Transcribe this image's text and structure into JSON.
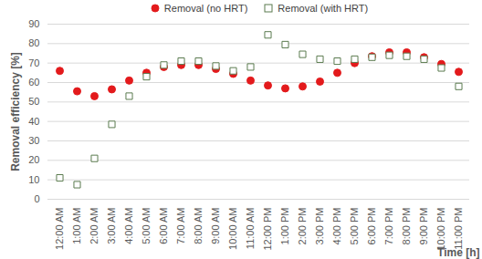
{
  "chart_data": {
    "type": "scatter",
    "categories": [
      "12:00 AM",
      "1:00 AM",
      "2:00 AM",
      "3:00 AM",
      "4:00 AM",
      "5:00 AM",
      "6:00 AM",
      "7:00 AM",
      "8:00 AM",
      "9:00 AM",
      "10:00 AM",
      "11:00 AM",
      "12:00 PM",
      "1:00 PM",
      "2:00 PM",
      "3:00 PM",
      "4:00 PM",
      "5:00 PM",
      "6:00 PM",
      "7:00 PM",
      "8:00 PM",
      "9:00 PM",
      "10:00 PM",
      "11:00 PM"
    ],
    "series": [
      {
        "name": "Removal (no HRT)",
        "color": "#e31a1c",
        "marker": "circle",
        "values": [
          66,
          55.5,
          53,
          56.5,
          61,
          65,
          68,
          69,
          69,
          67,
          64.5,
          61,
          58.5,
          57,
          58,
          60.5,
          65,
          70,
          73.5,
          75.5,
          75.5,
          73,
          69.5,
          65.5
        ]
      },
      {
        "name": "Removal (with HRT)",
        "color": "#5b7b4f",
        "marker": "square",
        "values": [
          11,
          7.5,
          21,
          38.5,
          53,
          63,
          69,
          71,
          71,
          68.5,
          66,
          68,
          84.5,
          79.5,
          74.5,
          72,
          71,
          72,
          73,
          74,
          73.5,
          72,
          67.5,
          58
        ]
      }
    ],
    "x_label": "Time [h]",
    "y_label": "Removal efficiency [%]",
    "ylim": [
      0,
      90
    ],
    "yticks": [
      0,
      10,
      20,
      30,
      40,
      50,
      60,
      70,
      80,
      90
    ],
    "grid": true,
    "legend": "top"
  }
}
